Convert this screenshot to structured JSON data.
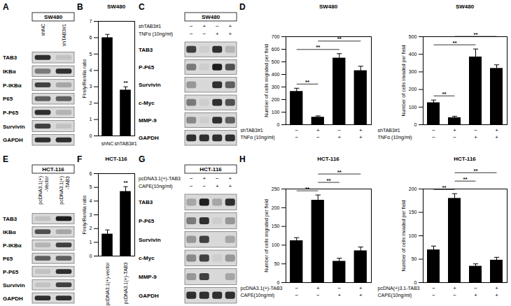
{
  "blots": [
    {
      "panel_label": "A",
      "cell_line": "SW480",
      "lanes": [
        "shNC",
        "shTAB3#1"
      ],
      "rows": [
        {
          "protein": "TAB3",
          "intensity": [
            0.85,
            0.35
          ]
        },
        {
          "protein": "IKBα",
          "intensity": [
            0.6,
            0.85
          ]
        },
        {
          "protein": "P-IKBα",
          "intensity": [
            0.8,
            0.45
          ]
        },
        {
          "protein": "P65",
          "intensity": [
            0.7,
            0.7
          ]
        },
        {
          "protein": "P-P65",
          "intensity": [
            0.85,
            0.4
          ]
        },
        {
          "protein": "Survivin",
          "intensity": [
            0.8,
            0.35
          ]
        },
        {
          "protein": "GAPDH",
          "intensity": [
            0.85,
            0.85
          ]
        }
      ]
    },
    {
      "panel_label": "C",
      "cell_line": "SW480",
      "conditions": [
        {
          "label": "shTAB3#1",
          "signs": [
            "−",
            "+",
            "−",
            "+"
          ]
        },
        {
          "label": "TNFα (10ng/ml)",
          "signs": [
            "−",
            "−",
            "+",
            "+"
          ]
        }
      ],
      "rows": [
        {
          "protein": "TAB3",
          "intensity": [
            0.8,
            0.3,
            0.85,
            0.4
          ]
        },
        {
          "protein": "P-P65",
          "intensity": [
            0.6,
            0.3,
            0.9,
            0.75
          ]
        },
        {
          "protein": "Survivin",
          "intensity": [
            0.5,
            0.25,
            0.85,
            0.7
          ]
        },
        {
          "protein": "c-Myc",
          "intensity": [
            0.6,
            0.3,
            0.85,
            0.75
          ]
        },
        {
          "protein": "MMP-9",
          "intensity": [
            0.55,
            0.3,
            0.85,
            0.7
          ]
        },
        {
          "protein": "GAPDH",
          "intensity": [
            0.85,
            0.85,
            0.85,
            0.85
          ]
        }
      ]
    },
    {
      "panel_label": "E",
      "cell_line": "HCT-116",
      "lanes": [
        "pcDNA3.1(+)-Vector",
        "pcDNA3.1(+)-TAB3"
      ],
      "rows": [
        {
          "protein": "TAB3",
          "intensity": [
            0.35,
            0.9
          ]
        },
        {
          "protein": "IKBα",
          "intensity": [
            0.75,
            0.45
          ]
        },
        {
          "protein": "P-IKBα",
          "intensity": [
            0.4,
            0.8
          ]
        },
        {
          "protein": "P65",
          "intensity": [
            0.7,
            0.7
          ]
        },
        {
          "protein": "P-P65",
          "intensity": [
            0.35,
            0.85
          ]
        },
        {
          "protein": "Survivin",
          "intensity": [
            0.35,
            0.8
          ]
        },
        {
          "protein": "GAPDH",
          "intensity": [
            0.85,
            0.85
          ]
        }
      ]
    },
    {
      "panel_label": "G",
      "cell_line": "HCT-116",
      "conditions": [
        {
          "label": "pcDNA3.1(+)-TAB3",
          "signs": [
            "−",
            "+",
            "−",
            "+"
          ]
        },
        {
          "label": "CAPE(10ng/ml)",
          "signs": [
            "−",
            "−",
            "+",
            "+"
          ]
        }
      ],
      "rows": [
        {
          "protein": "TAB3",
          "intensity": [
            0.45,
            0.9,
            0.45,
            0.85
          ]
        },
        {
          "protein": "P-P65",
          "intensity": [
            0.6,
            0.85,
            0.3,
            0.5
          ]
        },
        {
          "protein": "Survivin",
          "intensity": [
            0.5,
            0.8,
            0.25,
            0.45
          ]
        },
        {
          "protein": "c-Myc",
          "intensity": [
            0.55,
            0.8,
            0.3,
            0.5
          ]
        },
        {
          "protein": "MMP-9",
          "intensity": [
            0.5,
            0.8,
            0.25,
            0.45
          ]
        },
        {
          "protein": "GAPDH",
          "intensity": [
            0.85,
            0.85,
            0.85,
            0.85
          ]
        }
      ]
    }
  ],
  "chart_data": [
    {
      "type": "bar",
      "panel_label": "B",
      "title": "SW480",
      "y_label": "Firely/Renilla ratio",
      "categories": [
        "shNC",
        "shTAB3#1"
      ],
      "values": [
        6.0,
        2.8
      ],
      "errors": [
        0.2,
        0.2
      ],
      "ylim": [
        0,
        7
      ],
      "yticks": [
        0,
        1,
        2,
        3,
        4,
        5,
        6,
        7
      ],
      "color": "#000000",
      "significance": [
        {
          "from": 1,
          "to": 1,
          "label": "**"
        }
      ]
    },
    {
      "type": "bar",
      "panel_label": "D",
      "title": "SW480",
      "y_label": "Number of cells migrated per field",
      "categories": [
        null,
        null,
        null,
        null
      ],
      "tick_labels": "y",
      "values": [
        265,
        60,
        530,
        430
      ],
      "errors": [
        25,
        10,
        35,
        35
      ],
      "ylim": [
        0,
        700
      ],
      "yticks": [
        0,
        100,
        200,
        300,
        400,
        500,
        600,
        700
      ],
      "color": "#000000",
      "conditions": [
        {
          "label": "shTAB3#1",
          "signs": [
            "−",
            "+",
            "−",
            "+"
          ]
        },
        {
          "label": "TNFα (10ng/ml)",
          "signs": [
            "−",
            "−",
            "+",
            "+"
          ]
        }
      ],
      "significance": [
        {
          "from": 0,
          "to": 1,
          "label": "**"
        },
        {
          "from": 0,
          "to": 2,
          "label": "**"
        },
        {
          "from": 1,
          "to": 3,
          "label": "**"
        }
      ]
    },
    {
      "type": "bar",
      "title": "SW480",
      "y_label": "Number of cells invaded per field",
      "categories": [
        null,
        null,
        null,
        null
      ],
      "tick_labels": "y",
      "values": [
        125,
        40,
        385,
        320
      ],
      "errors": [
        15,
        8,
        45,
        20
      ],
      "ylim": [
        0,
        500
      ],
      "yticks": [
        0,
        100,
        200,
        300,
        400,
        500
      ],
      "color": "#000000",
      "conditions": [
        {
          "label": "shTAB3#1",
          "signs": [
            "−",
            "+",
            "−",
            "+"
          ]
        },
        {
          "label": "TNFα (10ng/ml)",
          "signs": [
            "−",
            "−",
            "+",
            "+"
          ]
        }
      ],
      "significance": [
        {
          "from": 0,
          "to": 1,
          "label": "**"
        },
        {
          "from": 0,
          "to": 2,
          "label": "**"
        },
        {
          "from": 1,
          "to": 3,
          "label": "**"
        }
      ]
    },
    {
      "type": "bar",
      "panel_label": "F",
      "title": "HCT-116",
      "y_label": "Firely/Renilla ratio",
      "categories": [
        "pcDNA3.1(+)-vector",
        "pcDNA3.1(+)-TAB3"
      ],
      "values": [
        1.6,
        4.7
      ],
      "errors": [
        0.3,
        0.35
      ],
      "ylim": [
        0,
        6
      ],
      "yticks": [
        0,
        1,
        2,
        3,
        4,
        5,
        6
      ],
      "color": "#000000",
      "significance": [
        {
          "from": 1,
          "to": 1,
          "label": "**"
        }
      ]
    },
    {
      "type": "bar",
      "panel_label": "H",
      "title": "HCT-116",
      "y_label": "Number of cells migrated per field",
      "categories": [
        null,
        null,
        null,
        null
      ],
      "tick_labels": "y",
      "values": [
        112,
        220,
        57,
        85
      ],
      "errors": [
        8,
        14,
        8,
        10
      ],
      "ylim": [
        0,
        250
      ],
      "yticks": [
        0,
        50,
        100,
        150,
        200,
        250
      ],
      "color": "#000000",
      "conditions": [
        {
          "label": "pcDNA3.1(+)-TAB3",
          "signs": [
            "−",
            "+",
            "−",
            "+"
          ]
        },
        {
          "label": "CAPE(10ng/ml)",
          "signs": [
            "−",
            "−",
            "+",
            "+"
          ]
        }
      ],
      "significance": [
        {
          "from": 0,
          "to": 1,
          "label": "**"
        },
        {
          "from": 1,
          "to": 2,
          "label": "**"
        },
        {
          "from": 1,
          "to": 3,
          "label": "**"
        }
      ]
    },
    {
      "type": "bar",
      "title": "HCT-116",
      "y_label": "Number of cells invaded per field",
      "categories": [
        null,
        null,
        null,
        null
      ],
      "tick_labels": "y",
      "values": [
        70,
        180,
        35,
        48
      ],
      "errors": [
        8,
        10,
        5,
        6
      ],
      "ylim": [
        0,
        200
      ],
      "yticks": [
        0,
        50,
        100,
        150,
        200
      ],
      "color": "#000000",
      "conditions": [
        {
          "label": "pcDNA(+)3.1-TAB3",
          "signs": [
            "−",
            "+",
            "−",
            "+"
          ]
        },
        {
          "label": "CAPE(10ng/ml)",
          "signs": [
            "−",
            "−",
            "+",
            "+"
          ]
        }
      ],
      "significance": [
        {
          "from": 0,
          "to": 1,
          "label": "**"
        },
        {
          "from": 1,
          "to": 2,
          "label": "**"
        },
        {
          "from": 1,
          "to": 3,
          "label": "**"
        }
      ]
    }
  ]
}
